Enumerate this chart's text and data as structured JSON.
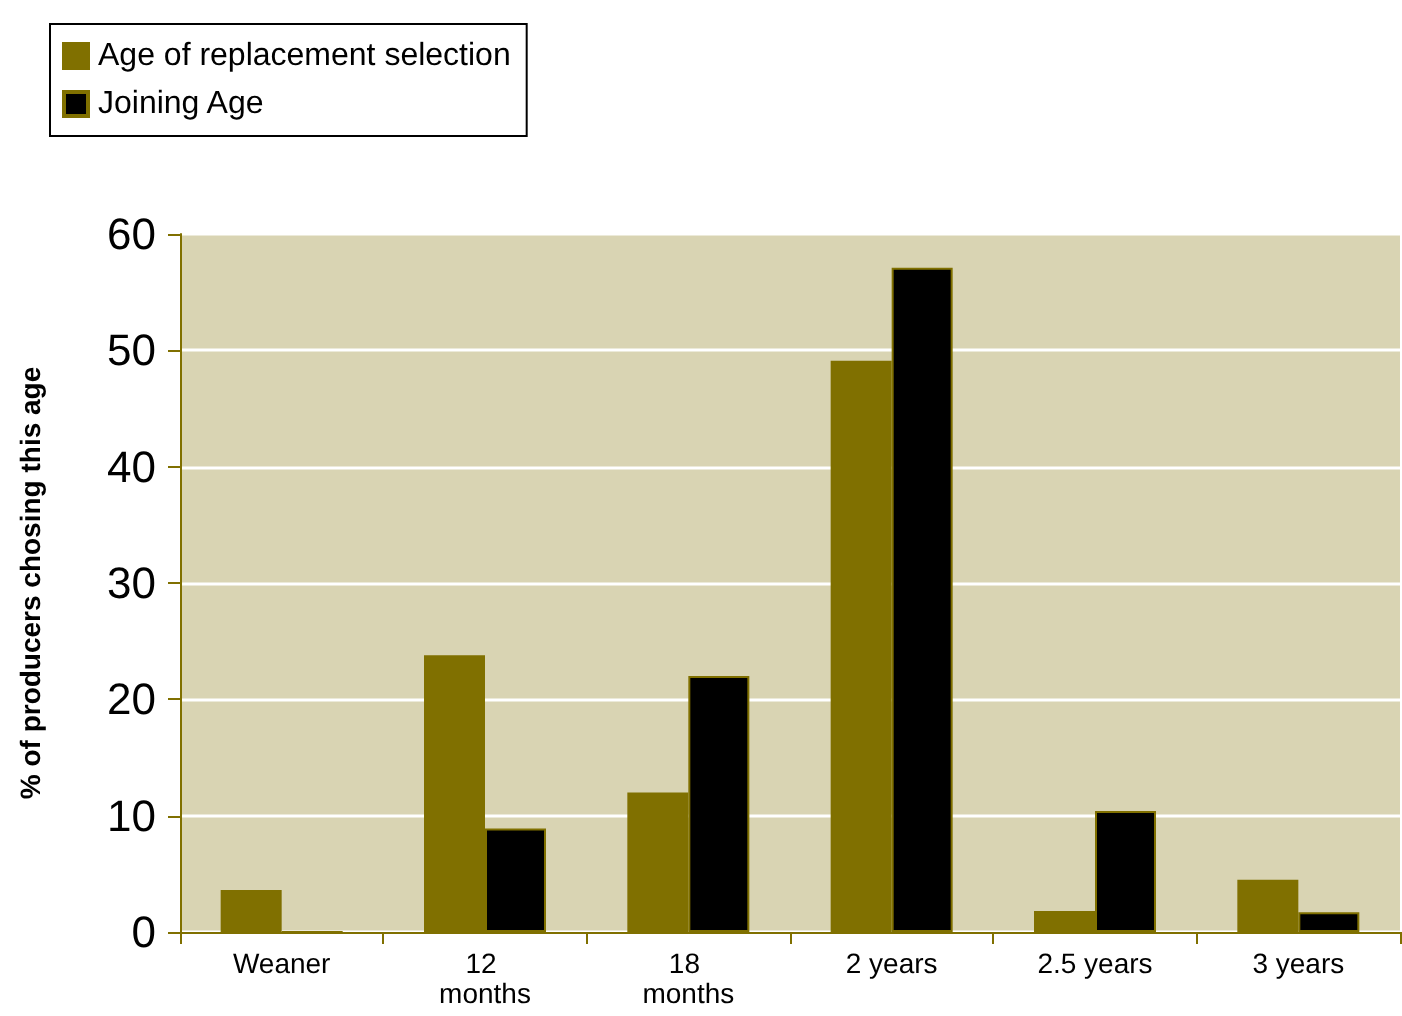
{
  "chart_data": {
    "type": "bar",
    "ylabel": "% of producers chosing this age",
    "categories": [
      "Weaner",
      "12 months",
      "18 months",
      "2 years",
      "2.5 years",
      "3 years"
    ],
    "series": [
      {
        "name": "Age of replacement selection",
        "color": "#807000",
        "values": [
          3.6,
          23.8,
          12.0,
          49.1,
          1.8,
          4.5
        ]
      },
      {
        "name": "Joining Age",
        "color": "#000000",
        "values": [
          0,
          8.9,
          22.0,
          57.1,
          10.4,
          1.7
        ]
      }
    ],
    "ylim": [
      0,
      60
    ],
    "yticks": [
      0,
      10,
      20,
      30,
      40,
      50,
      60
    ],
    "grid": "y",
    "legend": "top left"
  }
}
